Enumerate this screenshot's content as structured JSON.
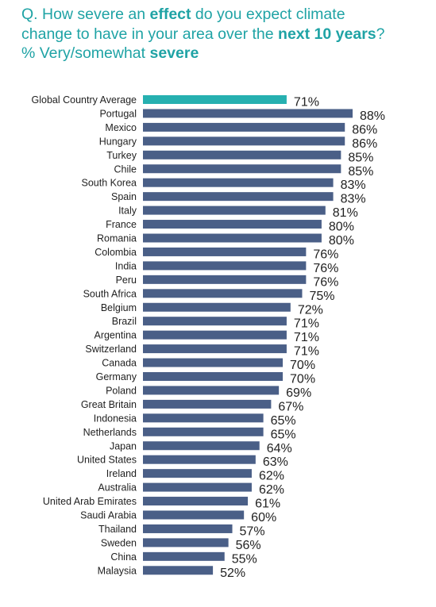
{
  "title": {
    "line1": [
      {
        "text": "Q. How severe an ",
        "bold": false
      },
      {
        "text": "effect",
        "bold": true
      },
      {
        "text": " do you expect climate",
        "bold": false
      }
    ],
    "line2": [
      {
        "text": "change to have in your area over the ",
        "bold": false
      },
      {
        "text": "next 10 years",
        "bold": true
      },
      {
        "text": "?",
        "bold": false
      }
    ],
    "line3": [
      {
        "text": "% Very/somewhat ",
        "bold": false
      },
      {
        "text": "severe",
        "bold": true
      }
    ]
  },
  "colors": {
    "title": "#1fa3a5",
    "highlight_bar": "#26b0b0",
    "bar": "#4a5f87"
  },
  "chart_data": {
    "type": "bar",
    "orientation": "horizontal",
    "value_suffix": "%",
    "highlight_category": "Global Country Average",
    "categories": [
      "Global Country Average",
      "Portugal",
      "Mexico",
      "Hungary",
      "Turkey",
      "Chile",
      "South Korea",
      "Spain",
      "Italy",
      "France",
      "Romania",
      "Colombia",
      "India",
      "Peru",
      "South Africa",
      "Belgium",
      "Brazil",
      "Argentina",
      "Switzerland",
      "Canada",
      "Germany",
      "Poland",
      "Great Britain",
      "Indonesia",
      "Netherlands",
      "Japan",
      "United States",
      "Ireland",
      "Australia",
      "United Arab Emirates",
      "Saudi Arabia",
      "Thailand",
      "Sweden",
      "China",
      "Malaysia"
    ],
    "values": [
      71,
      88,
      86,
      86,
      85,
      85,
      83,
      83,
      81,
      80,
      80,
      76,
      76,
      76,
      75,
      72,
      71,
      71,
      71,
      70,
      70,
      69,
      67,
      65,
      65,
      64,
      63,
      62,
      62,
      61,
      60,
      57,
      56,
      55,
      52
    ],
    "xlim": [
      0,
      88
    ],
    "grid": false,
    "legend": "none"
  }
}
